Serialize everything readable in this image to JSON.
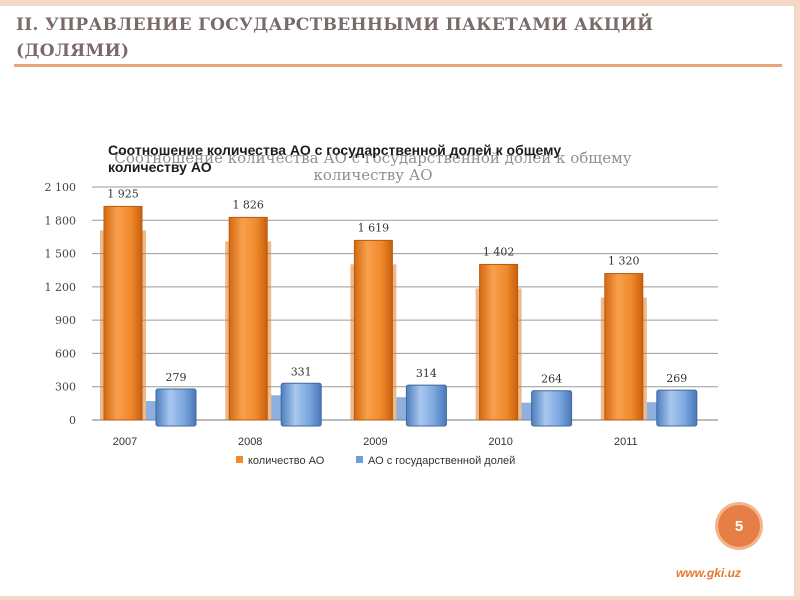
{
  "slide": {
    "title": "II. УПРАВЛЕНИЕ ГОСУДАРСТВЕННЫМИ ПАКЕТАМИ АКЦИЙ (ДОЛЯМИ)",
    "page_number": "5",
    "website": "www.gki.uz"
  },
  "colors": {
    "accent": "#e8a57a",
    "series1": "#f08a2c",
    "series2": "#6f9fd8"
  },
  "chart_data": {
    "type": "bar",
    "title": "Соотношение количества АО с государственной долей к общему количеству АО",
    "categories": [
      "2007",
      "2008",
      "2009",
      "2010",
      "2011"
    ],
    "series": [
      {
        "name": "количество АО",
        "values": [
          1925,
          1826,
          1619,
          1402,
          1320
        ]
      },
      {
        "name": "АО с государственной долей",
        "values": [
          279,
          331,
          314,
          264,
          269
        ]
      }
    ],
    "data_labels": [
      [
        "1 925",
        "1 826",
        "1 619",
        "1 402",
        "1 320"
      ],
      [
        "279",
        "331",
        "314",
        "264",
        "269"
      ]
    ],
    "y_ticks": [
      "0",
      "300",
      "600",
      "900",
      "1 200",
      "1 500",
      "1 800",
      "2 100"
    ],
    "ylim": [
      0,
      2100
    ],
    "legend_position": "bottom",
    "grid": true
  }
}
